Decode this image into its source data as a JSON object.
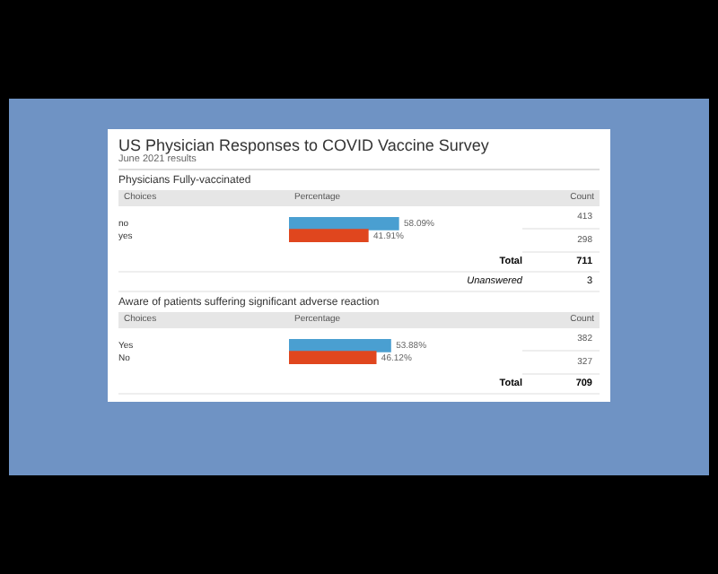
{
  "chart_data": [
    {
      "type": "other",
      "title": "US Physician Responses to COVID Vaccine Survey",
      "subtitle": "June 2021 results"
    },
    {
      "type": "bar",
      "orientation": "horizontal",
      "title": "Physicians Fully-vaccinated",
      "categories": [
        "no",
        "yes"
      ],
      "values": [
        58.09,
        41.91
      ],
      "colors": [
        "#4a9fd1",
        "#e0461e"
      ],
      "value_labels": [
        "58.09%",
        "41.91%"
      ],
      "grid": false,
      "legend": false,
      "annotations": [
        "Choices",
        "Percentage",
        "Count",
        "413",
        "298",
        "Total",
        "711",
        "Unanswered",
        "3"
      ]
    },
    {
      "type": "bar",
      "orientation": "horizontal",
      "title": "Aware of patients suffering significant adverse reaction",
      "categories": [
        "Yes",
        "No"
      ],
      "values": [
        53.88,
        46.12
      ],
      "colors": [
        "#4a9fd1",
        "#e0461e"
      ],
      "value_labels": [
        "53.88%",
        "46.12%"
      ],
      "grid": false,
      "legend": false,
      "annotations": [
        "Choices",
        "Percentage",
        "Count",
        "382",
        "327",
        "Total",
        "709"
      ]
    }
  ]
}
